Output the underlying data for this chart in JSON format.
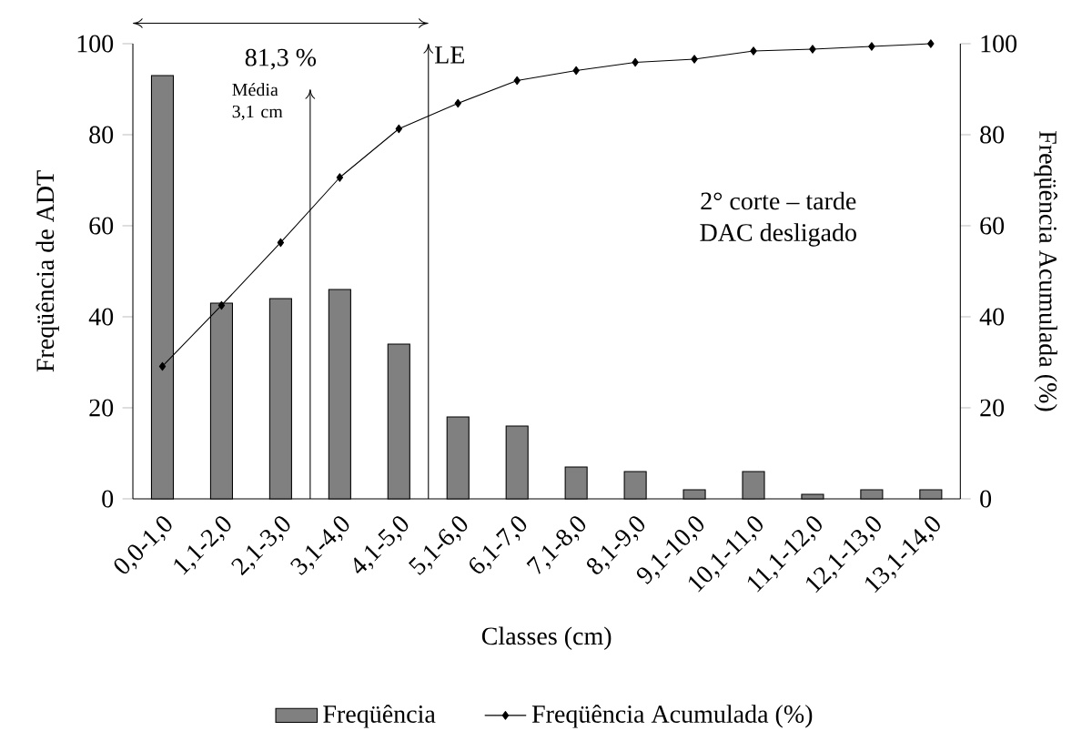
{
  "chart_data": {
    "type": "bar",
    "xlabel": "Classes (cm)",
    "ylabel": "Freqüência de ADT",
    "y2label": "Freqüência Acumulada (%)",
    "categories": [
      "0,0-1,0",
      "1,1-2,0",
      "2,1-3,0",
      "3,1-4,0",
      "4,1-5,0",
      "5,1-6,0",
      "6,1-7,0",
      "7,1-8,0",
      "8,1-9,0",
      "9,1-10,0",
      "10,1-11,0",
      "11,1-12,0",
      "12,1-13,0",
      "13,1-14,0"
    ],
    "series": [
      {
        "name": "Freqüência",
        "color": "#808080",
        "values": [
          93,
          43,
          44,
          46,
          34,
          18,
          16,
          7,
          6,
          2,
          6,
          1,
          2,
          2
        ]
      },
      {
        "name": "Freqüência Acumulada (%)",
        "type": "line",
        "axis": "y2",
        "color": "#000000",
        "values": [
          29.1,
          42.5,
          56.3,
          70.6,
          81.3,
          86.9,
          91.9,
          94.1,
          95.9,
          96.6,
          98.4,
          98.8,
          99.4,
          100
        ]
      }
    ],
    "ylim": [
      0,
      100
    ],
    "yticks": [
      0,
      20,
      40,
      60,
      80,
      100
    ],
    "y2lim": [
      0,
      100
    ],
    "y2ticks": [
      0,
      20,
      40,
      60,
      80,
      100
    ],
    "annotations": [
      "2° corte – tarde",
      "DAC desligado",
      "Média 3,1 cm",
      "LE",
      "81,3 %"
    ],
    "legend": "bottom",
    "marker": "diamond",
    "grid": false
  }
}
